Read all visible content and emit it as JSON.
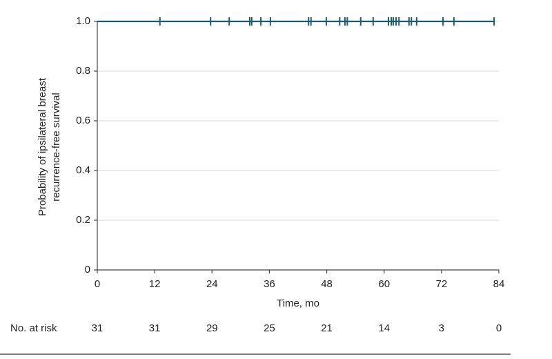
{
  "chart_data": {
    "type": "km",
    "ylabel": [
      "Probability of ipsilateral breast",
      "recurrence-free survival"
    ],
    "xlabel": "Time, mo",
    "xlim": [
      0,
      84
    ],
    "xticks": [
      0,
      12,
      24,
      36,
      48,
      60,
      72,
      84
    ],
    "ylim": [
      0,
      1
    ],
    "yticks": [
      0,
      0.2,
      0.4,
      0.6,
      0.8,
      {
        "value": 1,
        "label": "1.0"
      }
    ],
    "grid": true,
    "series": [
      {
        "color": "#1f5a6b",
        "x": [
          0,
          83
        ],
        "values": [
          1,
          1
        ],
        "censor_x": [
          13.1,
          23.7,
          27.6,
          31.9,
          32.3,
          34.2,
          36.2,
          44.2,
          44.7,
          47.9,
          50.7,
          51.8,
          52.3,
          55.1,
          57.7,
          60.9,
          61.5,
          61.9,
          62.5,
          63.1,
          65.2,
          65.7,
          66.8,
          72.3,
          74.6,
          83.0
        ]
      }
    ],
    "risk_label": "No. at risk",
    "risk_counts": [
      31,
      31,
      29,
      25,
      21,
      14,
      3,
      0
    ]
  }
}
